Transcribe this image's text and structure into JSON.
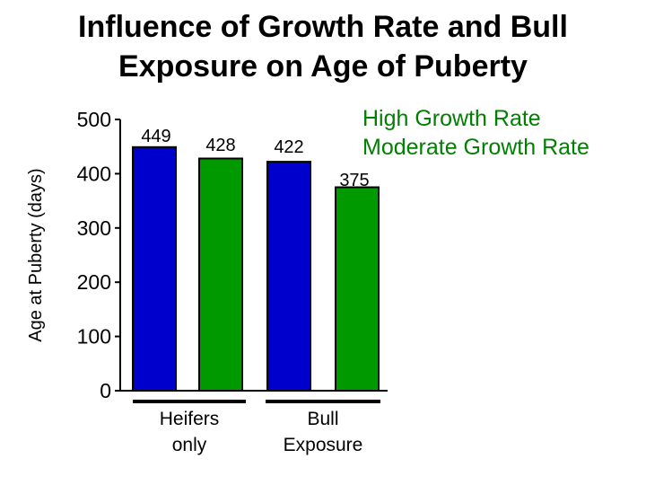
{
  "title": {
    "line1": "Influence of Growth Rate and Bull",
    "line2": "Exposure on Age of Puberty"
  },
  "legend": {
    "position": "top-right",
    "entries": [
      "High Growth Rate",
      "Moderate Growth Rate"
    ]
  },
  "colors": {
    "high_growth": "#0000CC",
    "moderate_growth": "#009900",
    "legend_text": "#008000",
    "axis": "#000000"
  },
  "chart_data": {
    "type": "bar",
    "title": "Influence of Growth Rate and Bull Exposure on Age of Puberty",
    "xlabel": "",
    "ylabel": "Age at Puberty (days)",
    "ylim": [
      0,
      500
    ],
    "yticks": [
      0,
      100,
      200,
      300,
      400,
      500
    ],
    "ytick_labels": [
      "0",
      "100",
      "200",
      "300",
      "400",
      "500"
    ],
    "categories": [
      "Heifers only",
      "Bull Exposure"
    ],
    "category_labels": [
      [
        "Heifers",
        "only"
      ],
      [
        "Bull",
        "Exposure"
      ]
    ],
    "series": [
      {
        "name": "High Growth Rate",
        "values": [
          449,
          422
        ],
        "labels": [
          "449",
          "422"
        ]
      },
      {
        "name": "Moderate Growth Rate",
        "values": [
          428,
          375
        ],
        "labels": [
          "428",
          "375"
        ]
      }
    ],
    "grid": false,
    "legend_position": "top-right"
  }
}
